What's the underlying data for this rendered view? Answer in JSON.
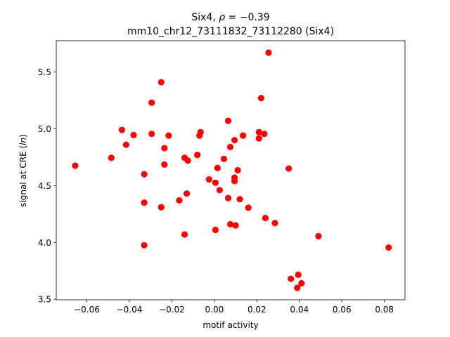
{
  "chart_data": {
    "type": "scatter",
    "title": {
      "line1_prefix": "Six4, ",
      "rho_symbol": "ρ",
      "rho_value": " = −0.39",
      "line2": "mm10_chr12_73111832_73112280 (Six4)"
    },
    "xlabel": "motif activity",
    "ylabel_prefix": "signal at CRE (",
    "ylabel_italic": "ln",
    "ylabel_suffix": ")",
    "xlim": [
      -0.0744,
      0.0897
    ],
    "ylim": [
      3.495,
      5.775
    ],
    "xticks": [
      {
        "value": -0.06,
        "label": "−0.06"
      },
      {
        "value": -0.04,
        "label": "−0.04"
      },
      {
        "value": -0.02,
        "label": "−0.02"
      },
      {
        "value": 0.0,
        "label": "0.00"
      },
      {
        "value": 0.02,
        "label": "0.02"
      },
      {
        "value": 0.04,
        "label": "0.04"
      },
      {
        "value": 0.06,
        "label": "0.06"
      },
      {
        "value": 0.08,
        "label": "0.08"
      }
    ],
    "yticks": [
      {
        "value": 3.5,
        "label": "3.5"
      },
      {
        "value": 4.0,
        "label": "4.0"
      },
      {
        "value": 4.5,
        "label": "4.5"
      },
      {
        "value": 5.0,
        "label": "5.0"
      },
      {
        "value": 5.5,
        "label": "5.5"
      }
    ],
    "grid": false,
    "marker_color": "#ff0000",
    "points": [
      {
        "x": -0.0655,
        "y": 4.675
      },
      {
        "x": -0.0485,
        "y": 4.745
      },
      {
        "x": -0.0435,
        "y": 4.99
      },
      {
        "x": -0.0415,
        "y": 4.86
      },
      {
        "x": -0.038,
        "y": 4.945
      },
      {
        "x": -0.033,
        "y": 4.6
      },
      {
        "x": -0.033,
        "y": 4.35
      },
      {
        "x": -0.033,
        "y": 3.975
      },
      {
        "x": -0.0295,
        "y": 5.23
      },
      {
        "x": -0.0295,
        "y": 4.955
      },
      {
        "x": -0.025,
        "y": 5.41
      },
      {
        "x": -0.025,
        "y": 4.31
      },
      {
        "x": -0.0235,
        "y": 4.83
      },
      {
        "x": -0.0235,
        "y": 4.685
      },
      {
        "x": -0.0215,
        "y": 4.94
      },
      {
        "x": -0.0165,
        "y": 4.37
      },
      {
        "x": -0.014,
        "y": 4.745
      },
      {
        "x": -0.014,
        "y": 4.07
      },
      {
        "x": -0.013,
        "y": 4.43
      },
      {
        "x": -0.0125,
        "y": 4.72
      },
      {
        "x": -0.008,
        "y": 4.77
      },
      {
        "x": -0.007,
        "y": 4.94
      },
      {
        "x": -0.0065,
        "y": 4.97
      },
      {
        "x": -0.0025,
        "y": 4.555
      },
      {
        "x": 0.0005,
        "y": 4.525
      },
      {
        "x": 0.0005,
        "y": 4.11
      },
      {
        "x": 0.0015,
        "y": 4.655
      },
      {
        "x": 0.0025,
        "y": 4.46
      },
      {
        "x": 0.0045,
        "y": 4.735
      },
      {
        "x": 0.0065,
        "y": 5.07
      },
      {
        "x": 0.0065,
        "y": 4.39
      },
      {
        "x": 0.0075,
        "y": 4.84
      },
      {
        "x": 0.0075,
        "y": 4.16
      },
      {
        "x": 0.0095,
        "y": 4.9
      },
      {
        "x": 0.0095,
        "y": 4.57
      },
      {
        "x": 0.0095,
        "y": 4.54
      },
      {
        "x": 0.01,
        "y": 4.15
      },
      {
        "x": 0.011,
        "y": 4.635
      },
      {
        "x": 0.012,
        "y": 4.38
      },
      {
        "x": 0.0135,
        "y": 4.94
      },
      {
        "x": 0.016,
        "y": 4.305
      },
      {
        "x": 0.021,
        "y": 4.97
      },
      {
        "x": 0.021,
        "y": 4.915
      },
      {
        "x": 0.022,
        "y": 5.27
      },
      {
        "x": 0.0235,
        "y": 4.955
      },
      {
        "x": 0.024,
        "y": 4.215
      },
      {
        "x": 0.0255,
        "y": 5.67
      },
      {
        "x": 0.0285,
        "y": 4.17
      },
      {
        "x": 0.035,
        "y": 4.65
      },
      {
        "x": 0.036,
        "y": 3.68
      },
      {
        "x": 0.039,
        "y": 3.6
      },
      {
        "x": 0.0395,
        "y": 3.715
      },
      {
        "x": 0.041,
        "y": 3.64
      },
      {
        "x": 0.049,
        "y": 4.055
      },
      {
        "x": 0.082,
        "y": 3.955
      }
    ]
  }
}
